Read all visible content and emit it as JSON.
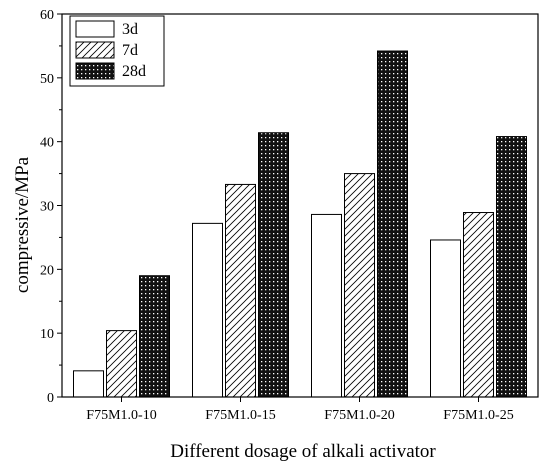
{
  "chart_data": {
    "type": "bar",
    "title": "",
    "xlabel": "Different dosage of alkali activator",
    "ylabel": "compressive/MPa",
    "categories": [
      "F75M1.0-10",
      "F75M1.0-15",
      "F75M1.0-20",
      "F75M1.0-25"
    ],
    "ylim": [
      0,
      60
    ],
    "yticks": [
      0,
      10,
      20,
      30,
      40,
      50,
      60
    ],
    "grid": false,
    "legend_position": "top-left",
    "series": [
      {
        "name": "3d",
        "pattern": "empty",
        "values": [
          4.1,
          27.2,
          28.6,
          24.6
        ]
      },
      {
        "name": "7d",
        "pattern": "diagonal-hatch",
        "values": [
          10.4,
          33.3,
          35.0,
          28.9
        ]
      },
      {
        "name": "28d",
        "pattern": "dense-dots",
        "values": [
          19.0,
          41.4,
          54.2,
          40.8
        ]
      }
    ]
  }
}
